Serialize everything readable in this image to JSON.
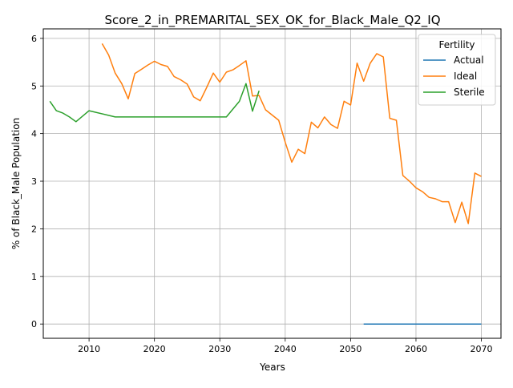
{
  "chart_data": {
    "type": "line",
    "title": "Score_2_in_PREMARITAL_SEX_OK_for_Black_Male_Q2_IQ",
    "xlabel": "Years",
    "ylabel": "% of Black_Male Population",
    "xlim": [
      2003,
      2073
    ],
    "ylim": [
      -0.3,
      6.2
    ],
    "xticks": [
      2010,
      2020,
      2030,
      2040,
      2050,
      2060,
      2070
    ],
    "yticks": [
      0,
      1,
      2,
      3,
      4,
      5,
      6
    ],
    "grid": true,
    "legend": {
      "title": "Fertility",
      "placement": "top-right"
    },
    "series": [
      {
        "name": "Actual",
        "color": "#1f77b4",
        "x": [
          2052,
          2054,
          2056,
          2058,
          2060,
          2062,
          2064,
          2066,
          2068,
          2070
        ],
        "y": [
          0,
          0,
          0,
          0,
          0,
          0,
          0,
          0,
          0,
          0
        ]
      },
      {
        "name": "Ideal",
        "color": "#ff7f0e",
        "x": [
          2012,
          2013,
          2014,
          2015,
          2016,
          2017,
          2018,
          2019,
          2020,
          2021,
          2022,
          2023,
          2024,
          2025,
          2026,
          2027,
          2028,
          2029,
          2030,
          2031,
          2032,
          2033,
          2034,
          2035,
          2036,
          2037,
          2038,
          2039,
          2040,
          2041,
          2042,
          2043,
          2044,
          2045,
          2046,
          2047,
          2048,
          2049,
          2050,
          2051,
          2052,
          2053,
          2054,
          2055,
          2056,
          2057,
          2058,
          2059,
          2060,
          2061,
          2062,
          2063,
          2064,
          2065,
          2066,
          2067,
          2068,
          2069,
          2070
        ],
        "y": [
          5.89,
          5.65,
          5.27,
          5.05,
          4.73,
          5.26,
          5.35,
          5.44,
          5.52,
          5.45,
          5.41,
          5.2,
          5.13,
          5.04,
          4.77,
          4.69,
          4.97,
          5.27,
          5.08,
          5.29,
          5.34,
          5.43,
          5.53,
          4.79,
          4.8,
          4.5,
          4.39,
          4.28,
          3.82,
          3.4,
          3.67,
          3.58,
          4.24,
          4.12,
          4.35,
          4.19,
          4.11,
          4.68,
          4.6,
          5.48,
          5.1,
          5.48,
          5.68,
          5.61,
          4.32,
          4.28,
          3.12,
          3.0,
          2.86,
          2.78,
          2.66,
          2.63,
          2.57,
          2.57,
          2.13,
          2.56,
          2.11,
          3.17,
          3.1
        ]
      },
      {
        "name": "Sterile",
        "color": "#2ca02c",
        "x": [
          2004,
          2005,
          2006,
          2007,
          2008,
          2010,
          2014,
          2031,
          2033,
          2034,
          2035,
          2036
        ],
        "y": [
          4.68,
          4.48,
          4.43,
          4.35,
          4.25,
          4.48,
          4.35,
          4.35,
          4.68,
          5.05,
          4.47,
          4.9
        ]
      }
    ]
  }
}
